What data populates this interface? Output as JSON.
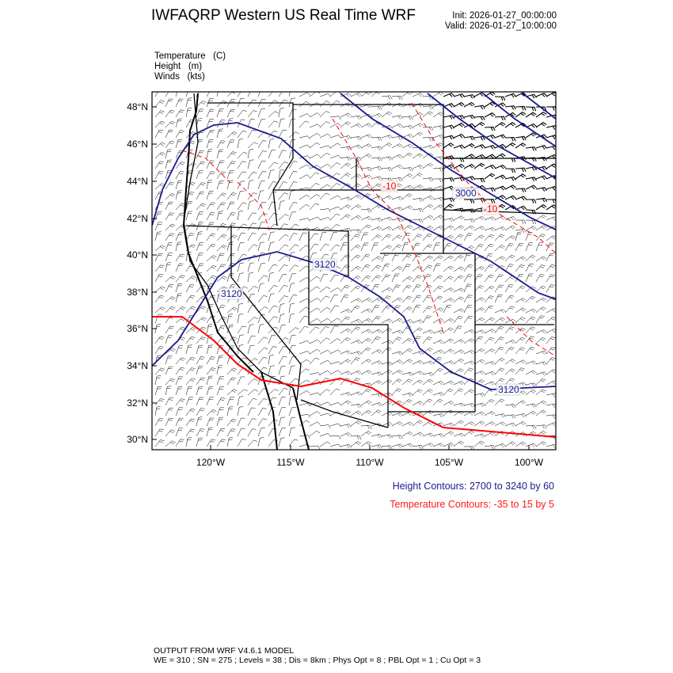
{
  "header": {
    "title": "IWFAQRP Western US Real Time WRF",
    "init": "Init: 2026-01-27_00:00:00",
    "valid": "Valid: 2026-01-27_10:00:00"
  },
  "fields": [
    "Temperature   (C)",
    "Height   (m)",
    "Winds   (kts)"
  ],
  "map": {
    "lat_ticks": [
      "48°N",
      "46°N",
      "44°N",
      "42°N",
      "40°N",
      "38°N",
      "36°N",
      "34°N",
      "32°N",
      "30°N"
    ],
    "lon_ticks": [
      "120°W",
      "115°W",
      "110°W",
      "105°W",
      "100°W"
    ],
    "height_labels": [
      "3000",
      "3120",
      "3120",
      "3120"
    ],
    "temperature_labels": [
      "-10",
      "-10"
    ],
    "colors": {
      "height": "#1a1a8c",
      "temperature": "#ff0000",
      "boundaries": "#000000",
      "wind_barbs": "#000000"
    }
  },
  "legend": {
    "height": "Height Contours: 2700 to 3240 by 60",
    "temperature": "Temperature Contours: -35 to 15 by 5"
  },
  "footer": {
    "line1": "OUTPUT FROM WRF V4.6.1 MODEL",
    "line2": "WE = 310 ; SN = 275 ; Levels = 38 ; Dis = 8km ; Phys Opt = 8 ; PBL Opt = 1 ; Cu Opt = 3"
  }
}
